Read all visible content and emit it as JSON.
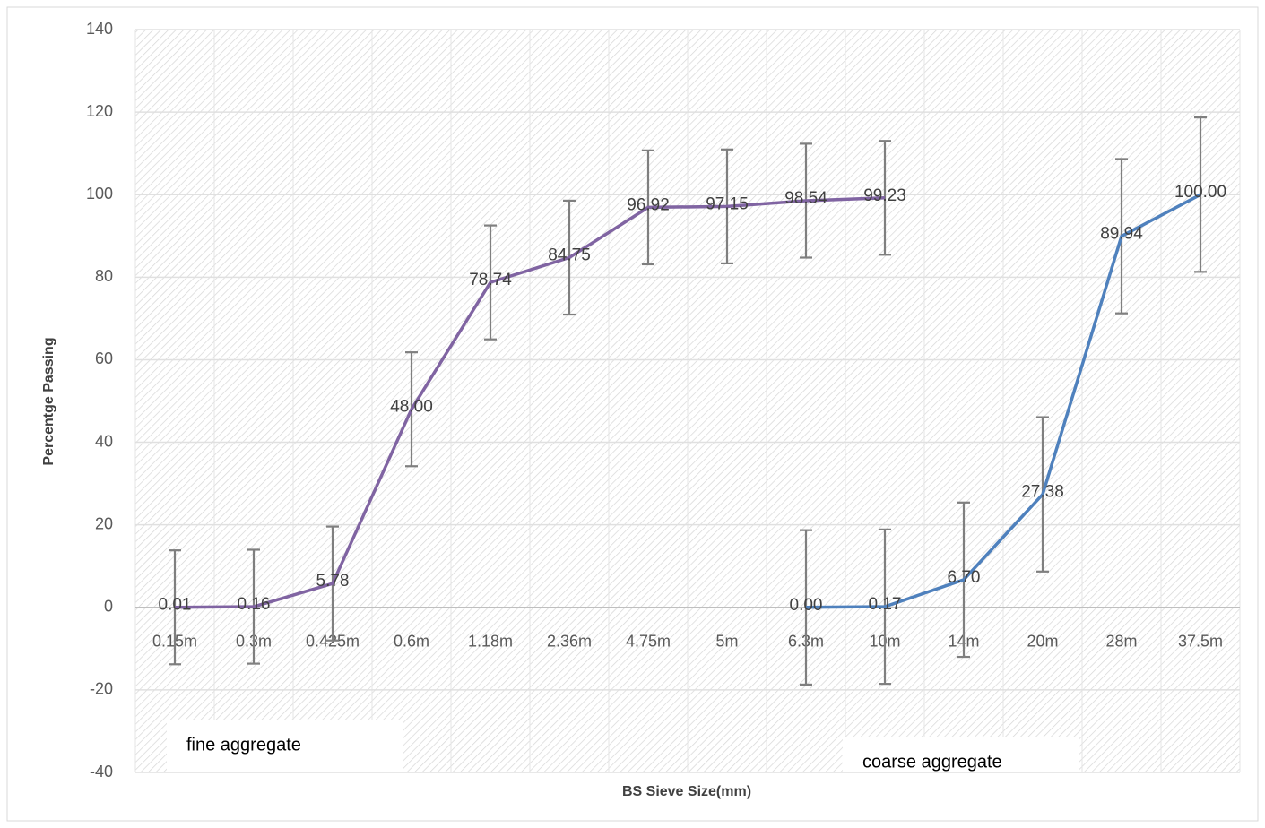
{
  "chart_data": {
    "type": "line",
    "x_label": "BS Sieve Size(mm)",
    "y_label": "Percentge Passing",
    "categories": [
      "0.15m",
      "0.3m",
      "0.425m",
      "0.6m",
      "1.18m",
      "2.36m",
      "4.75m",
      "5m",
      "6.3m",
      "10m",
      "14m",
      "20m",
      "28m",
      "37.5m"
    ],
    "series": [
      {
        "name": "fine aggregate",
        "color": "#8064a2",
        "values": [
          0.01,
          0.16,
          5.78,
          48.0,
          78.74,
          84.75,
          96.92,
          97.15,
          98.54,
          99.23,
          null,
          null,
          null,
          null
        ],
        "value_labels": [
          "0.01",
          "0.16",
          "5.78",
          "48.00",
          "78.74",
          "84.75",
          "96.92",
          "97.15",
          "98.54",
          "99.23",
          null,
          null,
          null,
          null
        ],
        "errors": [
          13.8,
          13.8,
          13.8,
          13.8,
          13.8,
          13.8,
          13.8,
          13.8,
          13.8,
          13.8,
          null,
          null,
          null,
          null
        ]
      },
      {
        "name": "coarse aggregate",
        "color": "#4f81bd",
        "values": [
          null,
          null,
          null,
          null,
          null,
          null,
          null,
          null,
          0.0,
          0.17,
          6.7,
          27.38,
          89.94,
          100.0
        ],
        "value_labels": [
          null,
          null,
          null,
          null,
          null,
          null,
          null,
          null,
          "0.00",
          "0.17",
          "6.70",
          "27.38",
          "89.94",
          "100.00"
        ],
        "errors": [
          null,
          null,
          null,
          null,
          null,
          null,
          null,
          null,
          18.7,
          18.7,
          18.7,
          18.7,
          18.7,
          18.7
        ]
      }
    ],
    "error_bar_color": "#7f7f7f",
    "annotations": [
      "fine aggregate",
      "coarse aggregate"
    ],
    "ylim": [
      -40,
      140
    ],
    "yticks": [
      -40,
      -20,
      0,
      20,
      40,
      60,
      80,
      100,
      120,
      140
    ],
    "grid": true
  }
}
